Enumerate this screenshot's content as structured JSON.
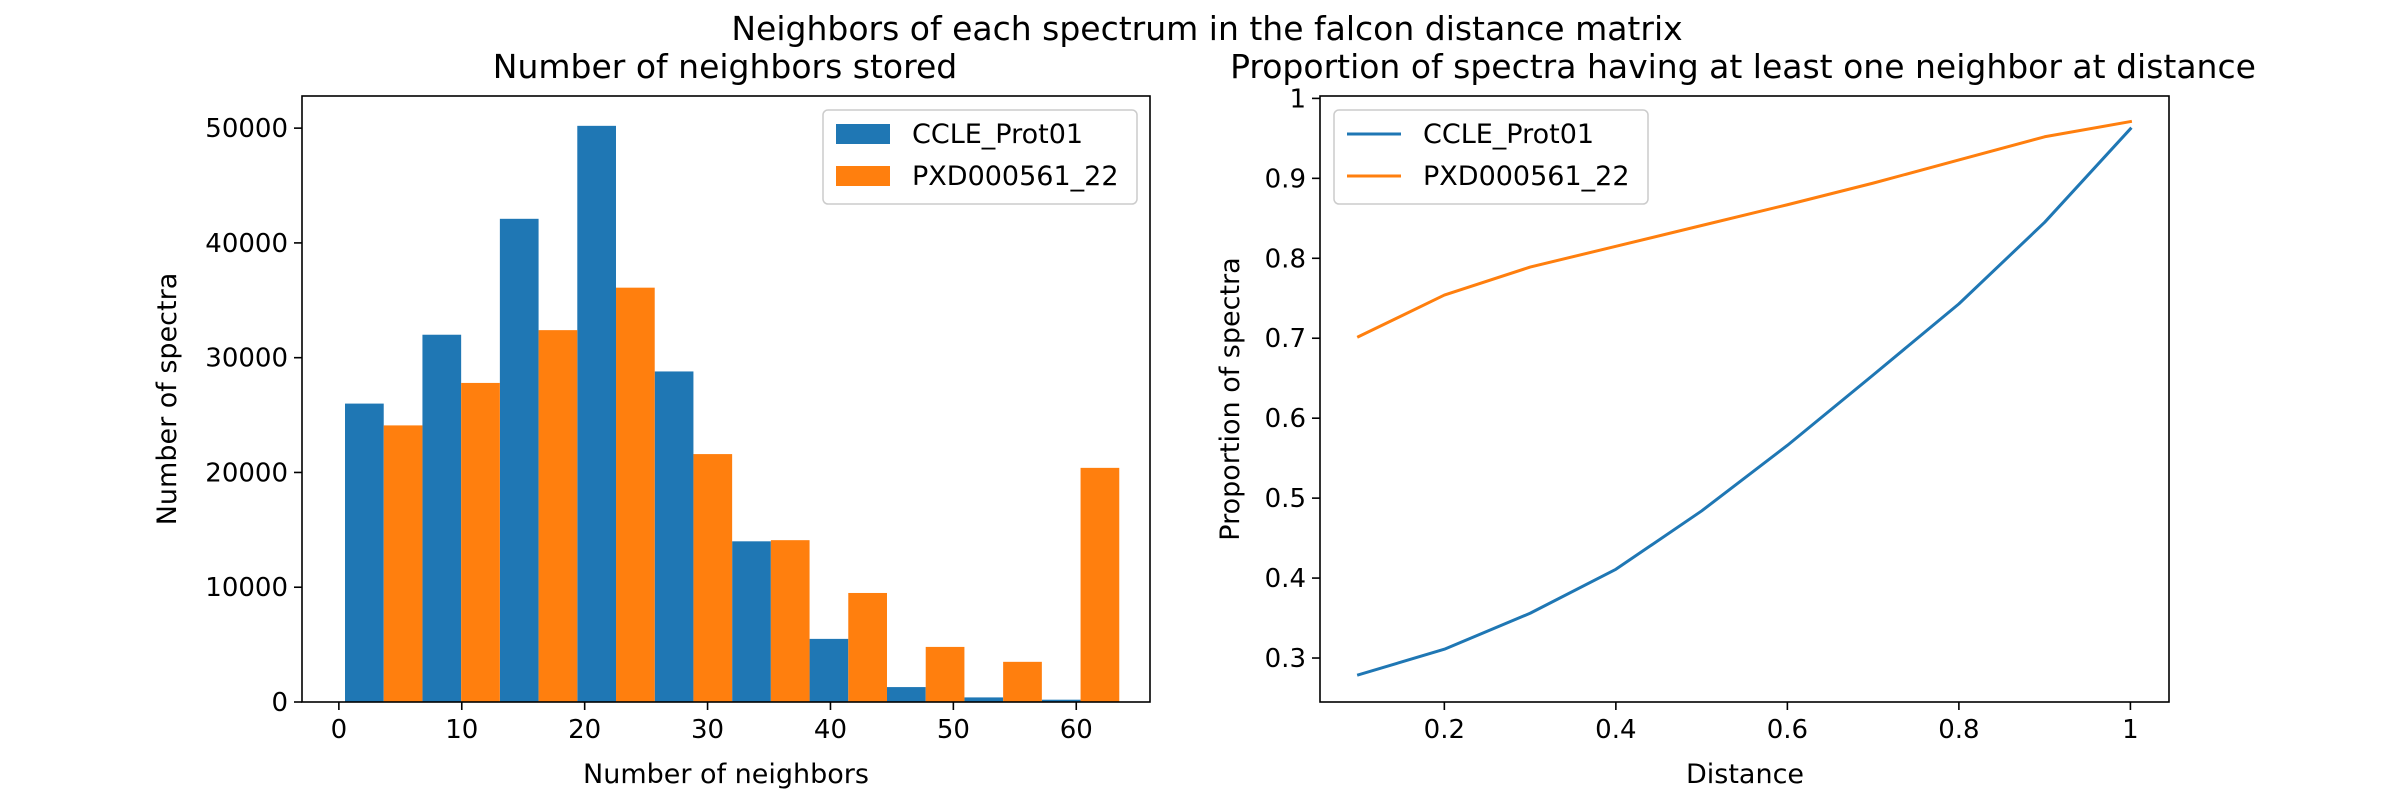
{
  "figure": {
    "suptitle": "Neighbors of each spectrum in the falcon distance matrix"
  },
  "colors": {
    "series1": "#1f77b4",
    "series2": "#ff7f0e"
  },
  "chart_data": [
    {
      "type": "bar",
      "title": "Number of neighbors stored",
      "xlabel": "Number of neighbors",
      "ylabel": "Number of spectra",
      "xlim": [
        -3,
        66
      ],
      "ylim": [
        0,
        52800
      ],
      "xticks": [
        0,
        10,
        20,
        30,
        40,
        50,
        60
      ],
      "yticks": [
        0,
        10000,
        20000,
        30000,
        40000,
        50000
      ],
      "bin_width": 6.3,
      "bin_starts": [
        0.5,
        6.8,
        13.1,
        19.4,
        25.7,
        32.0,
        38.3,
        44.6,
        50.9,
        57.2
      ],
      "legend": "upper right",
      "grid": false,
      "series": [
        {
          "name": "CCLE_Prot01",
          "values": [
            26000,
            32000,
            42100,
            50200,
            28800,
            14000,
            5500,
            1300,
            400,
            200
          ]
        },
        {
          "name": "PXD000561_22",
          "values": [
            24100,
            27800,
            32400,
            36100,
            21600,
            14100,
            9500,
            4800,
            3500,
            20400
          ]
        }
      ]
    },
    {
      "type": "line",
      "title": "Proportion of spectra having at least one neighbor at distance",
      "xlabel": "Distance",
      "ylabel": "Proportion of spectra",
      "xlim": [
        0.055,
        1.045
      ],
      "ylim": [
        0.245,
        1.003
      ],
      "xticks": [
        0.2,
        0.4,
        0.6,
        0.8,
        1.0
      ],
      "yticks": [
        0.3,
        0.4,
        0.5,
        0.6,
        0.7,
        0.8,
        0.9,
        1.0
      ],
      "legend": "upper left",
      "grid": false,
      "x": [
        0.1,
        0.2,
        0.3,
        0.4,
        0.5,
        0.6,
        0.7,
        0.8,
        0.9,
        1.0
      ],
      "series": [
        {
          "name": "CCLE_Prot01",
          "values": [
            0.279,
            0.311,
            0.356,
            0.411,
            0.484,
            0.566,
            0.654,
            0.743,
            0.845,
            0.962
          ]
        },
        {
          "name": "PXD000561_22",
          "values": [
            0.702,
            0.754,
            0.789,
            0.815,
            0.841,
            0.867,
            0.894,
            0.923,
            0.952,
            0.971
          ]
        }
      ]
    }
  ]
}
